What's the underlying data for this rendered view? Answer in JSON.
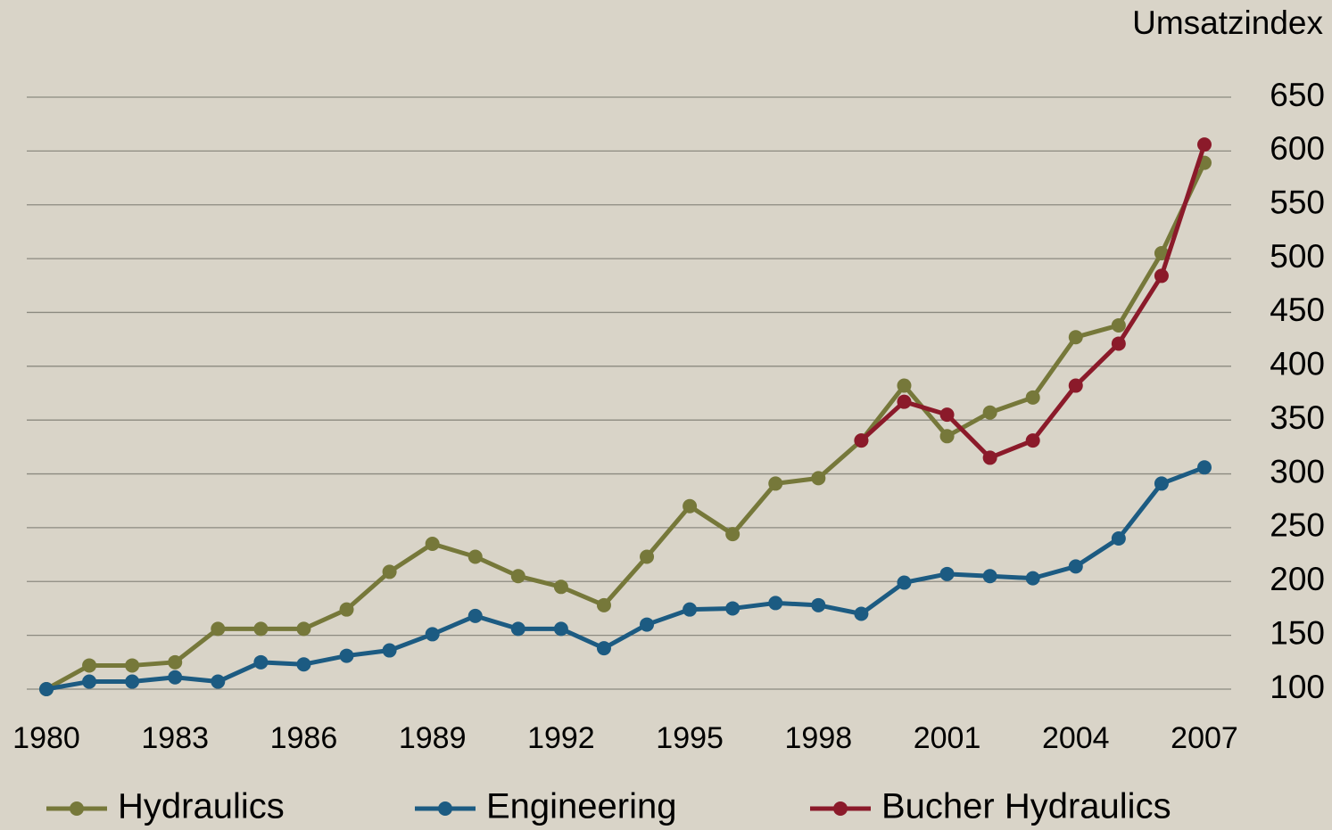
{
  "chart_data": {
    "type": "line",
    "y_label": "Umsatzindex",
    "x": [
      1980,
      1981,
      1982,
      1983,
      1984,
      1985,
      1986,
      1987,
      1988,
      1989,
      1990,
      1991,
      1992,
      1993,
      1994,
      1995,
      1996,
      1997,
      1998,
      1999,
      2000,
      2001,
      2002,
      2003,
      2004,
      2005,
      2006,
      2007
    ],
    "xlim": [
      1980,
      2007
    ],
    "xticks": [
      1980,
      1983,
      1986,
      1989,
      1992,
      1995,
      1998,
      2001,
      2004,
      2007
    ],
    "ylim": [
      100,
      650
    ],
    "yticks": [
      100,
      150,
      200,
      250,
      300,
      350,
      400,
      450,
      500,
      550,
      600,
      650
    ],
    "grid": true,
    "legend": "bottom",
    "series": [
      {
        "name": "Hydraulics",
        "color": "#76783a",
        "values": [
          100,
          122,
          122,
          125,
          156,
          156,
          156,
          174,
          209,
          235,
          223,
          205,
          195,
          178,
          223,
          270,
          244,
          291,
          296,
          331,
          382,
          335,
          357,
          371,
          427,
          438,
          505,
          589
        ]
      },
      {
        "name": "Engineering",
        "color": "#1c5b82",
        "values": [
          100,
          107,
          107,
          111,
          107,
          125,
          123,
          131,
          136,
          151,
          168,
          156,
          156,
          138,
          160,
          174,
          175,
          180,
          178,
          170,
          199,
          207,
          205,
          203,
          214,
          240,
          291,
          306
        ]
      },
      {
        "name": "Bucher Hydraulics",
        "color": "#8b1a2a",
        "values": [
          null,
          null,
          null,
          null,
          null,
          null,
          null,
          null,
          null,
          null,
          null,
          null,
          null,
          null,
          null,
          null,
          null,
          null,
          null,
          331,
          367,
          355,
          315,
          331,
          382,
          421,
          484,
          606
        ]
      }
    ]
  }
}
